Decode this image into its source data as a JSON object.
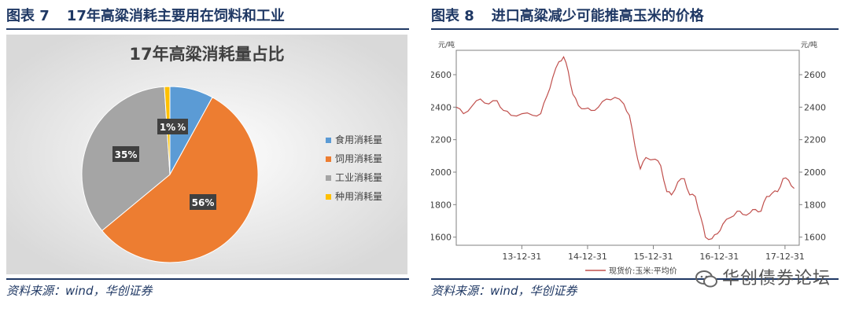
{
  "left": {
    "fig_label": "图表 7",
    "fig_title": "17年高粱消耗主要用在饲料和工业",
    "source": "资料来源：wind，华创证券"
  },
  "right": {
    "fig_label": "图表 8",
    "fig_title": "进口高粱减少可能推高玉米的价格",
    "source": "资料来源：wind，华创证券"
  },
  "watermark": "华创债券论坛",
  "chart_data": [
    {
      "type": "pie",
      "title": "17年高粱消耗量占比",
      "labels": [
        "食用消耗量",
        "饲用消耗量",
        "工业消耗量",
        "种用消耗量"
      ],
      "values": [
        8,
        56,
        35,
        1
      ],
      "data_labels": [
        "8%",
        "56%",
        "35%",
        "1%"
      ],
      "colors": [
        "#5b9bd5",
        "#ed7d31",
        "#a5a5a5",
        "#ffc000"
      ],
      "legend_position": "right"
    },
    {
      "type": "line",
      "unit_left": "元/吨",
      "unit_right": "元/吨",
      "ylim": [
        1550,
        2750
      ],
      "yticks": [
        1600,
        1800,
        2000,
        2200,
        2400,
        2600
      ],
      "xticks": [
        "13-12-31",
        "14-12-31",
        "15-12-31",
        "16-12-31",
        "17-12-31"
      ],
      "xlim": [
        "2013-01-01",
        "2018-03-20"
      ],
      "grid": false,
      "series": [
        {
          "name": "现货价:玉米:平均价",
          "color": "#c0504d",
          "points": [
            [
              "2013-01-01",
              2400
            ],
            [
              "2013-02-10",
              2360
            ],
            [
              "2013-04-01",
              2410
            ],
            [
              "2013-05-15",
              2450
            ],
            [
              "2013-07-01",
              2420
            ],
            [
              "2013-08-15",
              2440
            ],
            [
              "2013-09-20",
              2380
            ],
            [
              "2013-11-01",
              2350
            ],
            [
              "2014-01-01",
              2360
            ],
            [
              "2014-03-01",
              2350
            ],
            [
              "2014-04-15",
              2360
            ],
            [
              "2014-05-20",
              2470
            ],
            [
              "2014-06-20",
              2580
            ],
            [
              "2014-07-25",
              2680
            ],
            [
              "2014-08-20",
              2710
            ],
            [
              "2014-09-15",
              2620
            ],
            [
              "2014-10-10",
              2480
            ],
            [
              "2014-11-10",
              2410
            ],
            [
              "2014-12-15",
              2390
            ],
            [
              "2015-01-20",
              2380
            ],
            [
              "2015-03-01",
              2400
            ],
            [
              "2015-04-15",
              2450
            ],
            [
              "2015-06-01",
              2460
            ],
            [
              "2015-07-20",
              2420
            ],
            [
              "2015-08-20",
              2350
            ],
            [
              "2015-09-20",
              2160
            ],
            [
              "2015-10-20",
              2020
            ],
            [
              "2015-11-20",
              2090
            ],
            [
              "2016-01-10",
              2080
            ],
            [
              "2016-02-10",
              2040
            ],
            [
              "2016-03-15",
              1880
            ],
            [
              "2016-04-10",
              1860
            ],
            [
              "2016-05-15",
              1940
            ],
            [
              "2016-06-20",
              1960
            ],
            [
              "2016-07-20",
              1860
            ],
            [
              "2016-08-20",
              1850
            ],
            [
              "2016-09-20",
              1720
            ],
            [
              "2016-10-15",
              1600
            ],
            [
              "2016-11-20",
              1590
            ],
            [
              "2016-12-20",
              1620
            ],
            [
              "2017-01-20",
              1680
            ],
            [
              "2017-03-01",
              1720
            ],
            [
              "2017-04-10",
              1760
            ],
            [
              "2017-05-10",
              1740
            ],
            [
              "2017-06-20",
              1750
            ],
            [
              "2017-07-20",
              1770
            ],
            [
              "2017-08-20",
              1760
            ],
            [
              "2017-09-20",
              1850
            ],
            [
              "2017-10-20",
              1870
            ],
            [
              "2017-11-20",
              1880
            ],
            [
              "2017-12-20",
              1960
            ],
            [
              "2018-01-20",
              1950
            ],
            [
              "2018-02-20",
              1900
            ]
          ]
        }
      ]
    }
  ]
}
